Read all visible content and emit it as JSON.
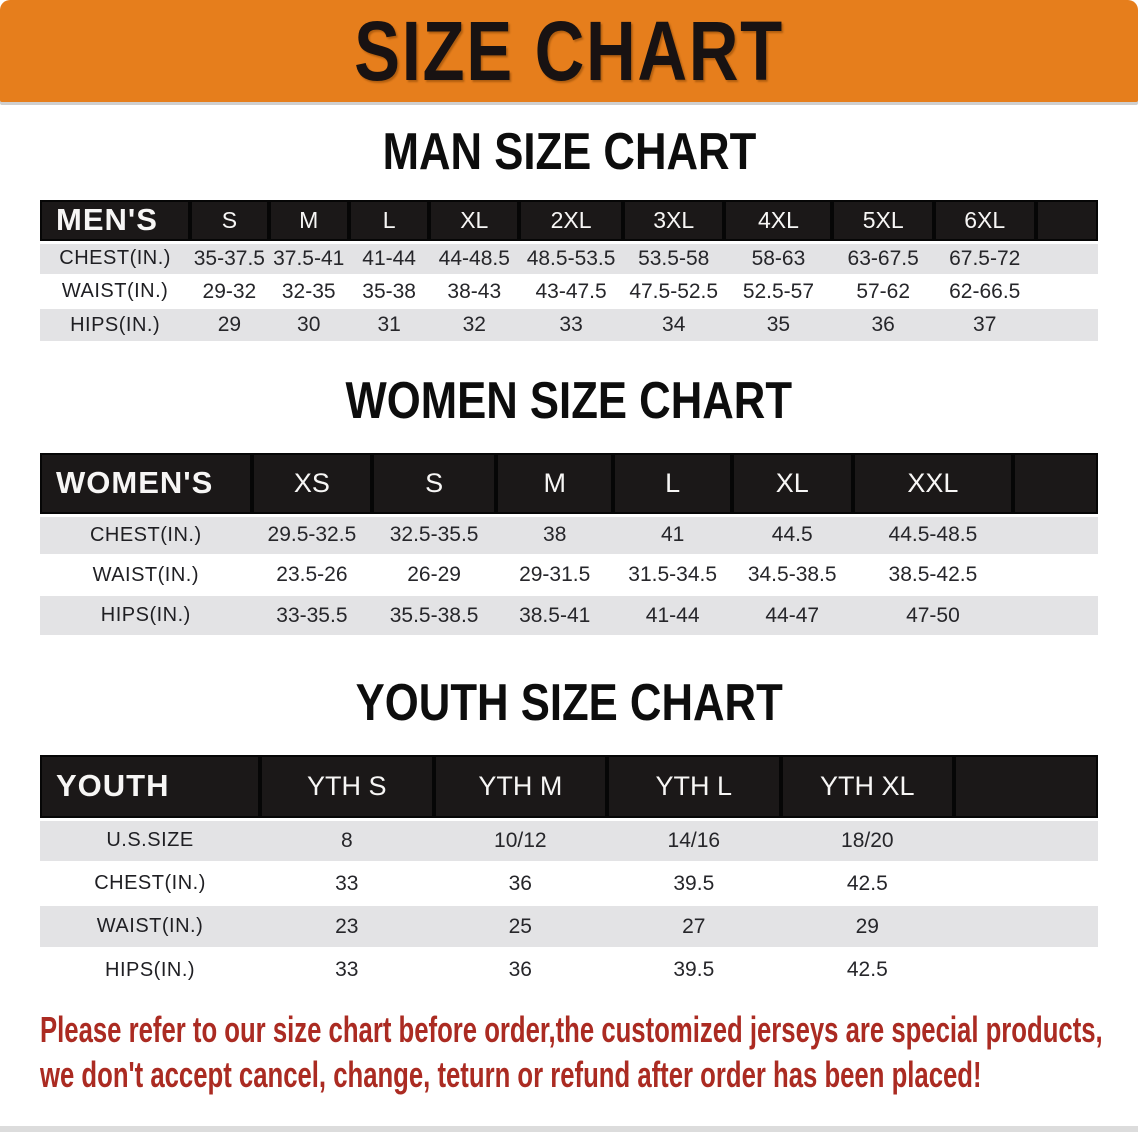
{
  "banner": {
    "title": "SIZE CHART",
    "bg_color": "#E67E1C"
  },
  "sections": [
    {
      "title": "MAN SIZE CHART",
      "table": {
        "header_label": "MEN'S",
        "columns": [
          "S",
          "M",
          "L",
          "XL",
          "2XL",
          "3XL",
          "4XL",
          "5XL",
          "6XL"
        ],
        "rows": [
          {
            "label": "CHEST(IN.)",
            "values": [
              "35-37.5",
              "37.5-41",
              "41-44",
              "44-48.5",
              "48.5-53.5",
              "53.5-58",
              "58-63",
              "63-67.5",
              "67.5-72"
            ]
          },
          {
            "label": "WAIST(IN.)",
            "values": [
              "29-32",
              "32-35",
              "35-38",
              "38-43",
              "43-47.5",
              "47.5-52.5",
              "52.5-57",
              "57-62",
              "62-66.5"
            ]
          },
          {
            "label": "HIPS(IN.)",
            "values": [
              "29",
              "30",
              "31",
              "32",
              "33",
              "34",
              "35",
              "36",
              "37"
            ]
          }
        ]
      }
    },
    {
      "title": "WOMEN SIZE CHART",
      "table": {
        "header_label": "WOMEN'S",
        "columns": [
          "XS",
          "S",
          "M",
          "L",
          "XL",
          "XXL"
        ],
        "rows": [
          {
            "label": "CHEST(IN.)",
            "values": [
              "29.5-32.5",
              "32.5-35.5",
              "38",
              "41",
              "44.5",
              "44.5-48.5"
            ]
          },
          {
            "label": "WAIST(IN.)",
            "values": [
              "23.5-26",
              "26-29",
              "29-31.5",
              "31.5-34.5",
              "34.5-38.5",
              "38.5-42.5"
            ]
          },
          {
            "label": "HIPS(IN.)",
            "values": [
              "33-35.5",
              "35.5-38.5",
              "38.5-41",
              "41-44",
              "44-47",
              "47-50"
            ]
          }
        ]
      }
    },
    {
      "title": "YOUTH SIZE CHART",
      "table": {
        "header_label": "YOUTH",
        "columns": [
          "YTH S",
          "YTH M",
          "YTH L",
          "YTH XL"
        ],
        "rows": [
          {
            "label": "U.S.SIZE",
            "values": [
              "8",
              "10/12",
              "14/16",
              "18/20"
            ]
          },
          {
            "label": "CHEST(IN.)",
            "values": [
              "33",
              "36",
              "39.5",
              "42.5"
            ]
          },
          {
            "label": "WAIST(IN.)",
            "values": [
              "23",
              "25",
              "27",
              "29"
            ]
          },
          {
            "label": "HIPS(IN.)",
            "values": [
              "33",
              "36",
              "39.5",
              "42.5"
            ]
          }
        ]
      }
    }
  ],
  "disclaimer": {
    "lines": [
      "Please refer to our size chart before order,the customized jerseys are special products,",
      "we don't accept cancel, change, teturn or refund after order has been placed!"
    ],
    "color": "#AB2B22"
  },
  "colors": {
    "stripe_gray": "#E3E3E5",
    "bar_black": "#1B1818"
  }
}
